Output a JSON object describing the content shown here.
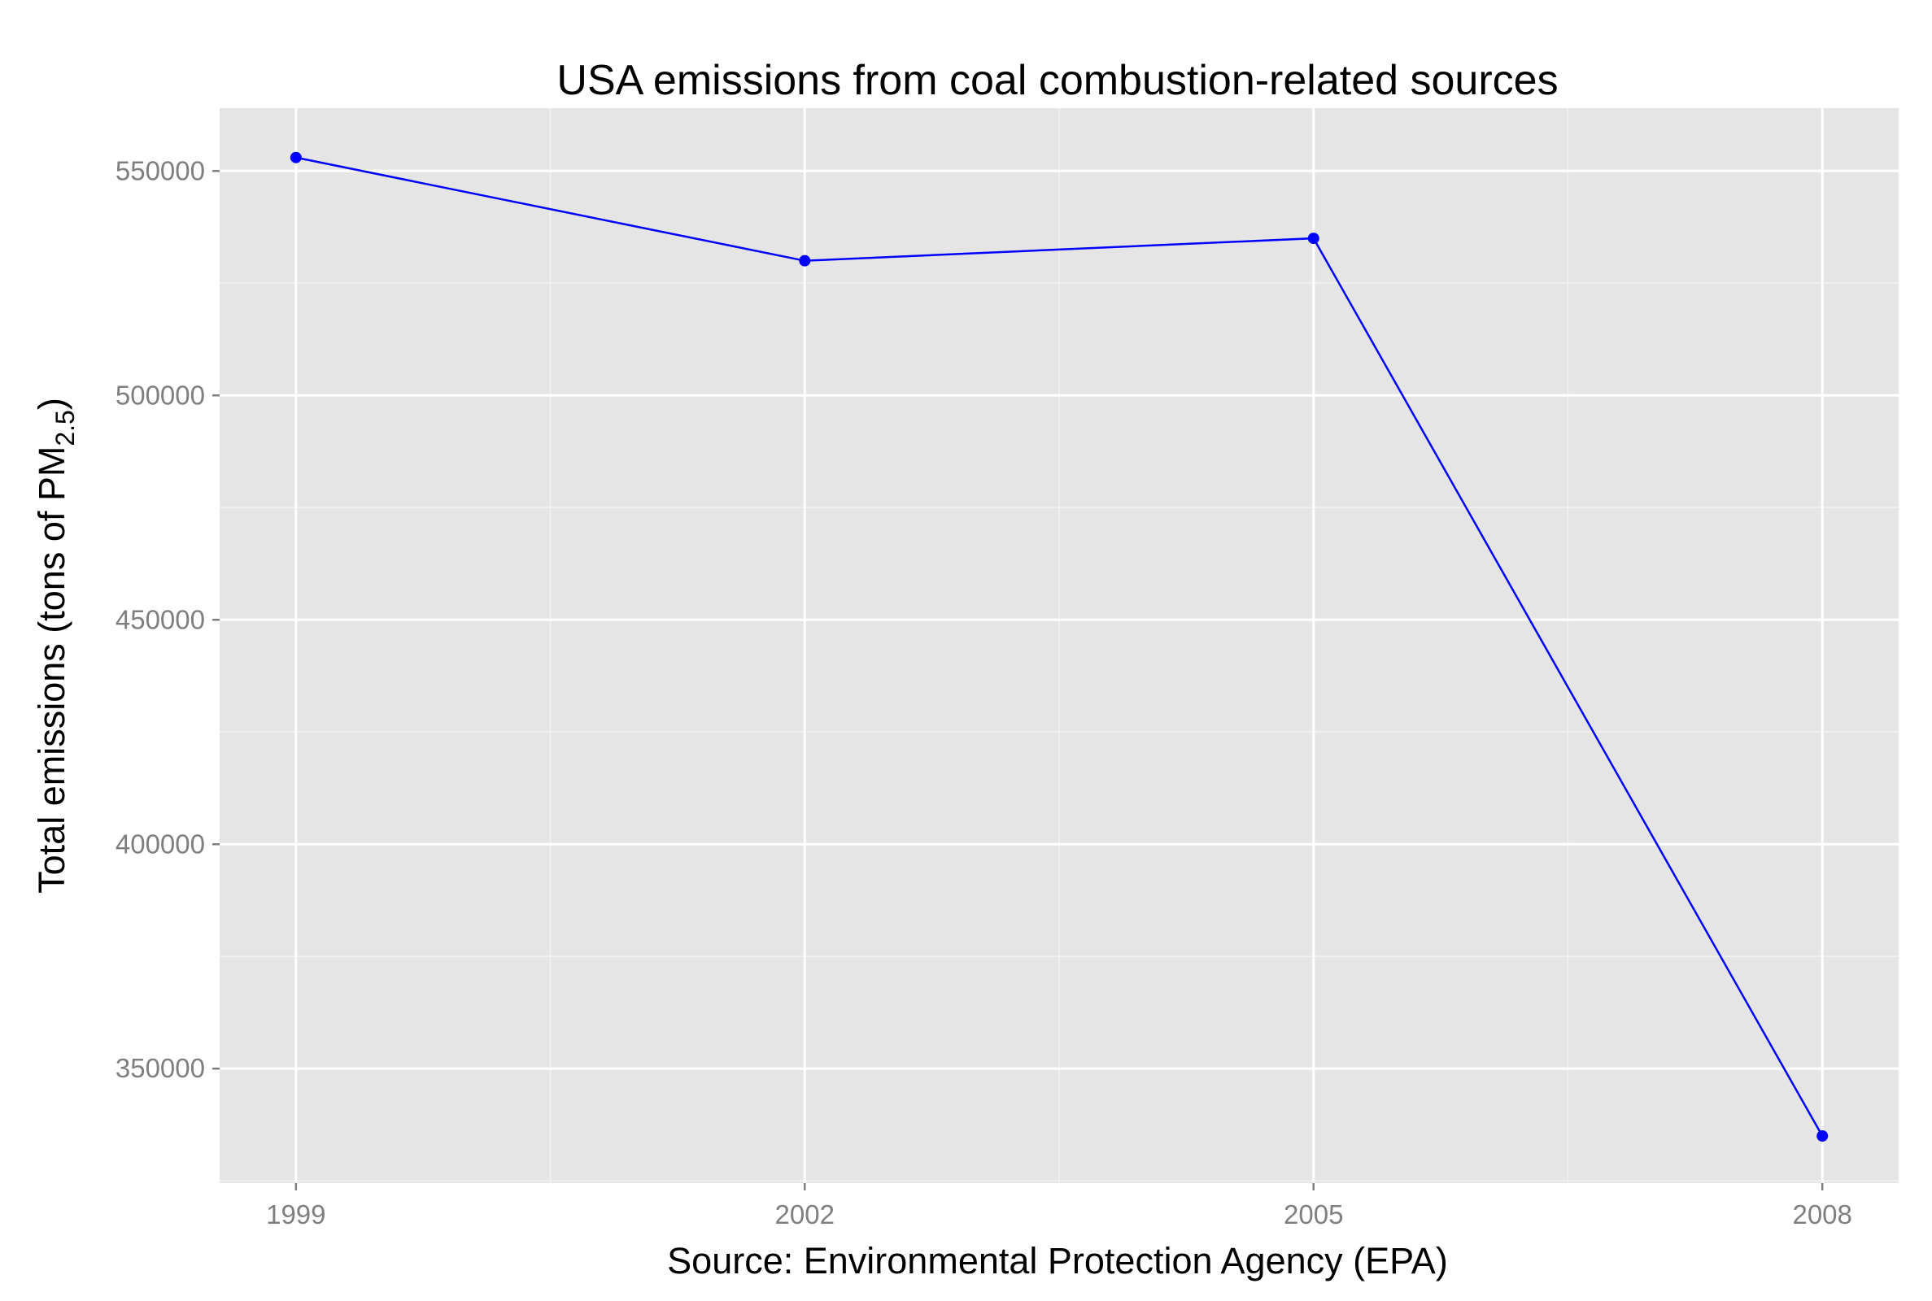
{
  "chart_data": {
    "type": "line",
    "title": "USA emissions from coal combustion-related sources",
    "xlabel": "Source: Environmental Protection Agency (EPA)",
    "ylabel": {
      "main": "Total emissions (tons of PM",
      "subscript": "2.5",
      "close": ")"
    },
    "x": [
      1999,
      2002,
      2005,
      2008
    ],
    "x_tick_labels": [
      "1999",
      "2002",
      "2005",
      "2008"
    ],
    "y_ticks": [
      350000,
      400000,
      450000,
      500000,
      550000
    ],
    "y_tick_labels": [
      "350000",
      "400000",
      "450000",
      "500000",
      "550000"
    ],
    "series": [
      {
        "values": [
          553000,
          530000,
          535000,
          335000
        ],
        "color": "#0000ff"
      }
    ],
    "xlim": [
      1998.55,
      2008.45
    ],
    "ylim": [
      324500,
      564000
    ],
    "grid": true,
    "panel_background": "#e5e5e5",
    "grid_color": "#ffffff",
    "legend": "none"
  }
}
